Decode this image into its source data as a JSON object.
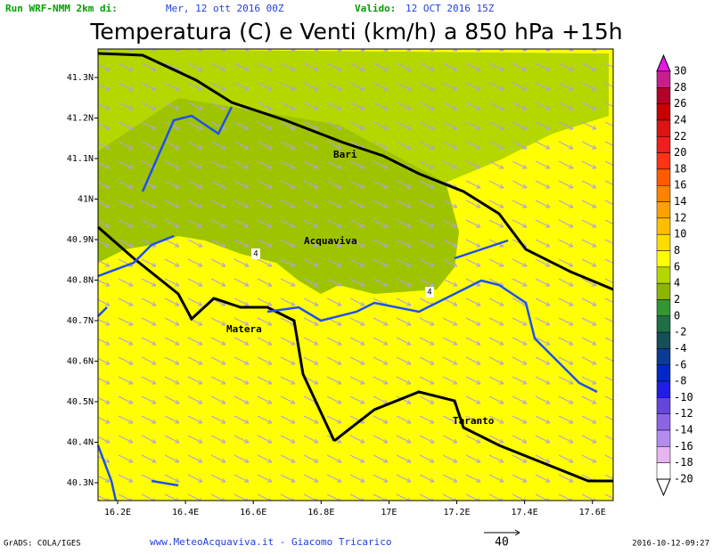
{
  "header": {
    "run_label": "Run WRF-NMM 2km di:",
    "run_date": "Mer, 12 ott 2016 00Z",
    "valid_label": "Valido:",
    "valid_date": "12 OCT 2016 15Z",
    "title": "Temperatura (C) e Venti (km/h) a 850 hPa +15h"
  },
  "map": {
    "lat_labels": [
      "41.3N",
      "41.2N",
      "41.1N",
      "41N",
      "40.9N",
      "40.8N",
      "40.7N",
      "40.6N",
      "40.5N",
      "40.4N",
      "40.3N"
    ],
    "lon_labels": [
      "16.2E",
      "16.4E",
      "16.6E",
      "16.8E",
      "17E",
      "17.2E",
      "17.4E",
      "17.6E"
    ],
    "cities": [
      "Bari",
      "Acquaviva",
      "Matera",
      "Taranto"
    ],
    "contour_labels": [
      "4",
      "4"
    ]
  },
  "colorbar": {
    "values": [
      30,
      28,
      26,
      24,
      22,
      20,
      18,
      16,
      14,
      12,
      10,
      8,
      6,
      4,
      2,
      0,
      -2,
      -4,
      -6,
      -8,
      -10,
      -12,
      -14,
      -16,
      -18,
      -20
    ],
    "colors": [
      "#e619e6",
      "#c81e8c",
      "#b40028",
      "#c80000",
      "#dc1414",
      "#f01e1e",
      "#ff3214",
      "#ff5a00",
      "#ff8200",
      "#ffa000",
      "#ffbe00",
      "#ffdc00",
      "#ffff00",
      "#b4d700",
      "#8cb400",
      "#329632",
      "#1e6e46",
      "#14505a",
      "#0a3c96",
      "#0028c8",
      "#1e1ee6",
      "#6446dc",
      "#8c64e6",
      "#b48cf0",
      "#e6b4f0",
      "#ffffff"
    ]
  },
  "footer": {
    "credits": "GrADS: COLA/IGES",
    "site": "www.MeteoAcquaviva.it - Giacomo Tricarico",
    "wind_scale": "40",
    "timestamp": "2016-10-12-09:27"
  }
}
